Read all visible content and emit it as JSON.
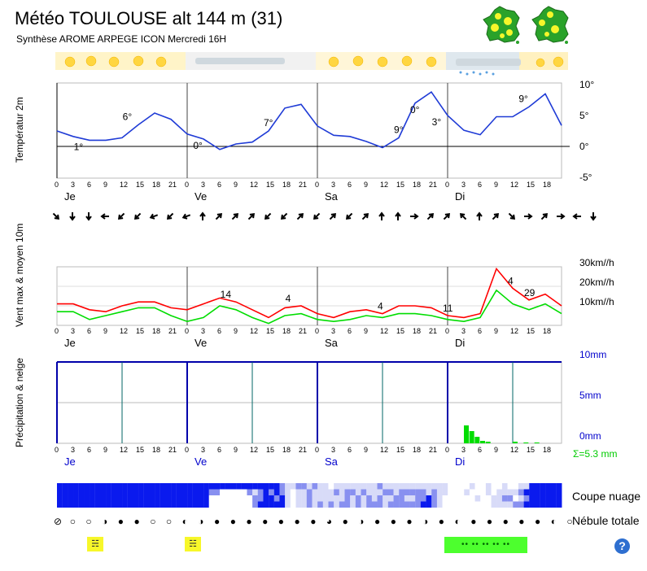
{
  "header": {
    "title": "Météo TOULOUSE alt 144 m (31)",
    "subtitle": "Synthèse AROME ARPEGE ICON  Mercredi 16H"
  },
  "colors": {
    "temp": "#1f3bd6",
    "gust": "#ff0000",
    "wind": "#00dd00",
    "precip": "#00dd00",
    "axis_blue": "#0000cc"
  },
  "row_labels": {
    "temp": "Températur 2m",
    "wind": "Vent max & moyen 10m",
    "precip": "Précipitation & neige",
    "clouds": "Coupe nuage",
    "cover": "Nébule totale"
  },
  "days": [
    "Je",
    "Ve",
    "Sa",
    "Di"
  ],
  "hour_ticks": [
    "0",
    "3",
    "6",
    "9",
    "12",
    "15",
    "18",
    "21"
  ],
  "last_day_ticks": [
    "0",
    "3",
    "6",
    "9",
    "12",
    "15",
    "18"
  ],
  "precip_total": "Σ=5.3 mm",
  "icons": {
    "help": "?",
    "fog": "☵",
    "rain": "•• •• •• •• ••"
  },
  "chart_data": [
    {
      "type": "line",
      "name": "temperature",
      "ylabel": "Températur 2m",
      "ylim": [
        -7,
        11
      ],
      "yticks": [
        "10°",
        "5°",
        "0°",
        "-5°"
      ],
      "ytick_values": [
        10,
        5,
        0,
        -5
      ],
      "x_hours": [
        0,
        3,
        6,
        9,
        12,
        15,
        18,
        21,
        24,
        27,
        30,
        33,
        36,
        39,
        42,
        45,
        48,
        51,
        54,
        57,
        60,
        63,
        66,
        69,
        72,
        75,
        78,
        81,
        84,
        87,
        90,
        93
      ],
      "values": [
        2.5,
        1.6,
        1,
        1,
        1.4,
        3.5,
        5.4,
        4.4,
        2,
        1.2,
        -0.5,
        0.4,
        0.7,
        2.5,
        6.2,
        6.8,
        3.3,
        1.8,
        1.6,
        0.8,
        -0.2,
        1.4,
        7,
        8.8,
        5,
        2.6,
        1.9,
        4.8,
        4.8,
        6.4,
        8.5,
        3.4
      ],
      "annotations": [
        {
          "text": "1°",
          "hour": 4
        },
        {
          "text": "6°",
          "hour": 13
        },
        {
          "text": "0°",
          "hour": 26
        },
        {
          "text": "7°",
          "hour": 39
        },
        {
          "text": "0°",
          "hour": 66
        },
        {
          "text": "9°",
          "hour": 63
        },
        {
          "text": "3°",
          "hour": 70
        },
        {
          "text": "9°",
          "hour": 86
        }
      ]
    },
    {
      "type": "line",
      "name": "wind",
      "ylabel": "Vent max & moyen 10m",
      "ylim": [
        0,
        30
      ],
      "yticks": [
        "30km//h",
        "20km//h",
        "10km//h"
      ],
      "ytick_values": [
        30,
        20,
        10
      ],
      "x_hours": [
        0,
        3,
        6,
        9,
        12,
        15,
        18,
        21,
        24,
        27,
        30,
        33,
        36,
        39,
        42,
        45,
        48,
        51,
        54,
        57,
        60,
        63,
        66,
        69,
        72,
        75,
        78,
        81,
        84,
        87,
        90,
        93
      ],
      "series": [
        {
          "name": "Vent max",
          "values": [
            11,
            11,
            8,
            7,
            10,
            12,
            12,
            9,
            8,
            11,
            14,
            12,
            8,
            4,
            9,
            10,
            6,
            4,
            7,
            8,
            6,
            10,
            10,
            9,
            5,
            4,
            6,
            29,
            19,
            13,
            16,
            10
          ]
        },
        {
          "name": "Vent moyen",
          "values": [
            7,
            7,
            3,
            5,
            7,
            9,
            9,
            5,
            2,
            4,
            10,
            8,
            4,
            1,
            5,
            6,
            3,
            2,
            3,
            5,
            4,
            6,
            6,
            5,
            3,
            2,
            4,
            18,
            11,
            8,
            11,
            6
          ]
        }
      ],
      "annotations": [
        {
          "text": "14",
          "hour": 31
        },
        {
          "text": "4",
          "hour": 43
        },
        {
          "text": "4",
          "hour": 60
        },
        {
          "text": "11",
          "hour": 72
        },
        {
          "text": "4",
          "hour": 84
        },
        {
          "text": "29",
          "hour": 87
        }
      ]
    },
    {
      "type": "bar",
      "name": "precipitation",
      "ylabel": "Précipitation & neige",
      "ylim": [
        0,
        10
      ],
      "yticks": [
        "10mm",
        "5mm",
        "0mm"
      ],
      "ytick_values": [
        10,
        5,
        0
      ],
      "bars": [
        {
          "hour": 75,
          "value": 2.2
        },
        {
          "hour": 76,
          "value": 1.5
        },
        {
          "hour": 77,
          "value": 0.8
        },
        {
          "hour": 78,
          "value": 0.3
        },
        {
          "hour": 79,
          "value": 0.2
        },
        {
          "hour": 84,
          "value": 0.2
        },
        {
          "hour": 86,
          "value": 0.1
        },
        {
          "hour": 88,
          "value": 0.1
        }
      ],
      "total": "Σ=5.3 mm"
    }
  ],
  "cover_symbols": [
    "⊘",
    "○",
    "○",
    "◑",
    "●",
    "●",
    "○",
    "○",
    "◐",
    "◑",
    "●",
    "●",
    "●",
    "●",
    "●",
    "●",
    "●",
    "◕",
    "●",
    "◑",
    "●",
    "●",
    "●",
    "◑",
    "●",
    "◐",
    "●",
    "●",
    "●",
    "●",
    "●",
    "◐",
    "○"
  ],
  "wind_arrows": [
    45,
    90,
    90,
    180,
    135,
    135,
    160,
    135,
    160,
    270,
    315,
    315,
    315,
    135,
    135,
    315,
    135,
    315,
    135,
    315,
    270,
    270,
    0,
    315,
    315,
    225,
    270,
    315,
    45,
    0,
    315,
    0,
    180,
    90
  ],
  "cloud_cells": [
    [
      3,
      3,
      3,
      3,
      3,
      3,
      3,
      3,
      3,
      3,
      3,
      3,
      3,
      3,
      3,
      3,
      3,
      3,
      3,
      3,
      3,
      3,
      3,
      3,
      3,
      3,
      3,
      3,
      3,
      3,
      3,
      3,
      3,
      3,
      3,
      3,
      3,
      3,
      3,
      3,
      3,
      2,
      1,
      1,
      2,
      2,
      1,
      2,
      1,
      1,
      0,
      1,
      1,
      1,
      1,
      1,
      1,
      1,
      1,
      2,
      1,
      1,
      1,
      1,
      1,
      1,
      1,
      1,
      1,
      1,
      1,
      1,
      0,
      0,
      0,
      0,
      1,
      0,
      0,
      1,
      0,
      0,
      1,
      0,
      0,
      1,
      1,
      3,
      3,
      3,
      3,
      3,
      3
    ],
    [
      3,
      3,
      3,
      3,
      3,
      3,
      3,
      3,
      3,
      3,
      3,
      3,
      3,
      3,
      3,
      3,
      3,
      3,
      3,
      3,
      3,
      3,
      3,
      3,
      3,
      3,
      3,
      3,
      2,
      2,
      0,
      0,
      0,
      0,
      0,
      2,
      1,
      2,
      3,
      2,
      3,
      2,
      1,
      0,
      1,
      1,
      2,
      1,
      1,
      1,
      1,
      2,
      1,
      2,
      2,
      1,
      2,
      1,
      1,
      1,
      2,
      2,
      1,
      2,
      2,
      2,
      2,
      2,
      1,
      2,
      1,
      1,
      0,
      0,
      0,
      1,
      0,
      0,
      0,
      1,
      0,
      1,
      1,
      1,
      1,
      2,
      3,
      3,
      3,
      3,
      3,
      3,
      3
    ],
    [
      3,
      3,
      3,
      3,
      3,
      3,
      3,
      3,
      3,
      3,
      3,
      3,
      3,
      3,
      3,
      3,
      3,
      3,
      3,
      3,
      3,
      3,
      3,
      3,
      3,
      3,
      3,
      3,
      0,
      0,
      0,
      0,
      0,
      0,
      0,
      0,
      2,
      2,
      3,
      3,
      2,
      3,
      1,
      0,
      1,
      1,
      2,
      1,
      1,
      1,
      1,
      1,
      1,
      2,
      1,
      2,
      1,
      2,
      1,
      2,
      1,
      1,
      2,
      2,
      1,
      1,
      2,
      2,
      3,
      2,
      1,
      0,
      0,
      0,
      0,
      0,
      0,
      1,
      0,
      0,
      1,
      1,
      2,
      2,
      0,
      1,
      2,
      3,
      3,
      3,
      3,
      3,
      3
    ],
    [
      3,
      3,
      3,
      3,
      3,
      3,
      3,
      3,
      3,
      3,
      3,
      3,
      3,
      3,
      3,
      3,
      3,
      3,
      3,
      3,
      3,
      3,
      3,
      3,
      3,
      3,
      3,
      3,
      0,
      0,
      0,
      0,
      0,
      0,
      0,
      0,
      2,
      3,
      3,
      3,
      3,
      3,
      1,
      0,
      1,
      1,
      2,
      1,
      2,
      1,
      2,
      1,
      2,
      2,
      1,
      2,
      1,
      2,
      2,
      2,
      1,
      2,
      2,
      2,
      2,
      2,
      2,
      3,
      3,
      2,
      1,
      0,
      0,
      0,
      0,
      0,
      0,
      0,
      0,
      0,
      1,
      1,
      1,
      1,
      2,
      2,
      3,
      3,
      3,
      3,
      3,
      3,
      3
    ]
  ]
}
